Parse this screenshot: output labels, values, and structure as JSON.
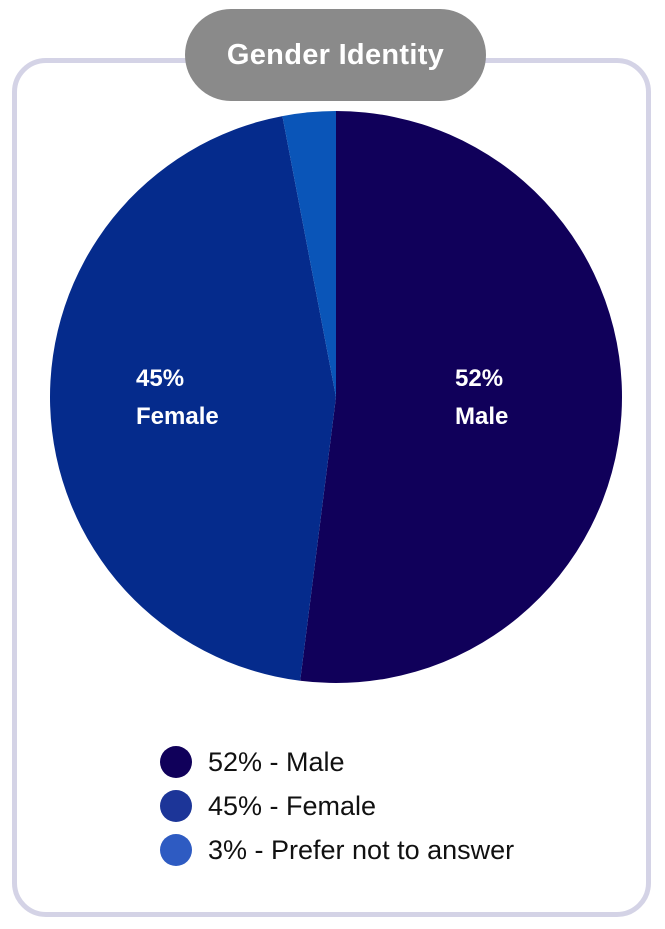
{
  "chart_data": {
    "type": "pie",
    "title": "Gender Identity",
    "slices": [
      {
        "name": "Male",
        "value": 52,
        "color": "#10005a",
        "label_line1": "52%",
        "label_line2": "Male"
      },
      {
        "name": "Female",
        "value": 45,
        "color": "#052b8c",
        "label_line1": "45%",
        "label_line2": "Female"
      },
      {
        "name": "Prefer not to answer",
        "value": 3,
        "color": "#0a55b8",
        "label_line1": "",
        "label_line2": ""
      }
    ],
    "legend": {
      "placement": "bottom",
      "items": [
        {
          "label": "52% - Male",
          "color": "#10005a"
        },
        {
          "label": "45% - Female",
          "color": "#1c3598"
        },
        {
          "label": "3% - Prefer not to answer",
          "color": "#2e5bc2"
        }
      ]
    }
  }
}
